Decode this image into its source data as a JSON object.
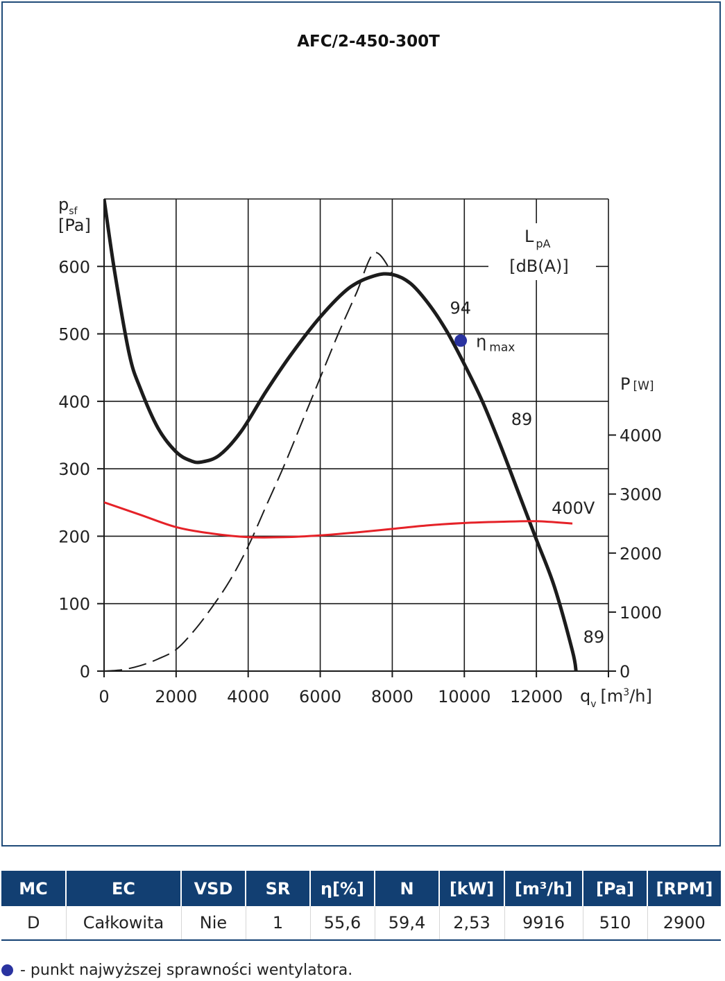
{
  "chart_data": {
    "type": "line",
    "title": "AFC/2-450-300T",
    "x_axis": {
      "label": "q",
      "label_sub": "v",
      "unit_pre": "[m",
      "unit_sup": "3",
      "unit_post": "/h]",
      "range": [
        0,
        14000
      ],
      "ticks": [
        0,
        2000,
        4000,
        6000,
        8000,
        10000,
        12000
      ]
    },
    "y_axis_left": {
      "label": "p",
      "label_sub": "sf",
      "unit": "[Pa]",
      "range": [
        0,
        700
      ],
      "ticks": [
        0,
        100,
        200,
        300,
        400,
        500,
        600
      ]
    },
    "y_axis_right": {
      "label": "P",
      "unit": "[W]",
      "color": "#e52228",
      "range": [
        0,
        8000
      ],
      "ticks": [
        0,
        1000,
        2000,
        3000,
        4000
      ]
    },
    "noise_label": {
      "label": "L",
      "label_sub": "pA",
      "unit": "[dB(A)]",
      "color": "#1fa055"
    },
    "grid": true,
    "series": [
      {
        "axis": "left",
        "style": "solid",
        "color": "#1c1c1c",
        "x": [
          0,
          300,
          700,
          1000,
          1500,
          2000,
          2400,
          2700,
          3200,
          3800,
          4500,
          5200,
          6000,
          6800,
          7500,
          8000,
          8500,
          9000,
          9500,
          10000,
          10500,
          11000,
          11500,
          12000,
          12500,
          13000,
          13100
        ],
        "y": [
          700,
          590,
          470,
          420,
          360,
          325,
          312,
          310,
          320,
          355,
          415,
          470,
          525,
          568,
          586,
          588,
          575,
          545,
          505,
          455,
          400,
          335,
          265,
          195,
          125,
          30,
          0
        ]
      },
      {
        "axis": "left",
        "style": "dashed",
        "color": "#1c1c1c",
        "x": [
          0,
          500,
          1000,
          1500,
          2000,
          2500,
          3000,
          3500,
          4000,
          4500,
          5000,
          5500,
          6000,
          6500,
          7000,
          7500,
          8000
        ],
        "y": [
          0,
          2,
          8,
          18,
          32,
          60,
          95,
          135,
          185,
          245,
          305,
          370,
          435,
          500,
          560,
          620,
          590
        ]
      },
      {
        "axis": "right",
        "style": "solid",
        "color": "#e52228",
        "label": "400V",
        "x": [
          0,
          1000,
          2000,
          3000,
          4000,
          5000,
          6000,
          7000,
          8000,
          9000,
          10000,
          11000,
          12000,
          13000
        ],
        "y": [
          2860,
          2650,
          2440,
          2330,
          2270,
          2270,
          2300,
          2350,
          2410,
          2470,
          2510,
          2530,
          2540,
          2500
        ]
      }
    ],
    "noise_levels": [
      {
        "text": "94",
        "x": 9600,
        "y": 530
      },
      {
        "text": "89",
        "x": 11300,
        "y": 365
      },
      {
        "text": "89",
        "x": 13300,
        "y": 42
      }
    ],
    "eta_max": {
      "x": 9900,
      "y": 490,
      "symbol": "η",
      "sub": "max",
      "color": "#2a33a0"
    }
  },
  "table": {
    "headers": [
      "MC",
      "EC",
      "VSD",
      "SR",
      "η[%]",
      "N",
      "[kW]",
      "[m³/h]",
      "[Pa]",
      "[RPM]"
    ],
    "rows": [
      [
        "D",
        "Całkowita",
        "Nie",
        "1",
        "55,6",
        "59,4",
        "2,53",
        "9916",
        "510",
        "2900"
      ]
    ]
  },
  "legend_note": "- punkt najwyższej sprawności wentylatora."
}
